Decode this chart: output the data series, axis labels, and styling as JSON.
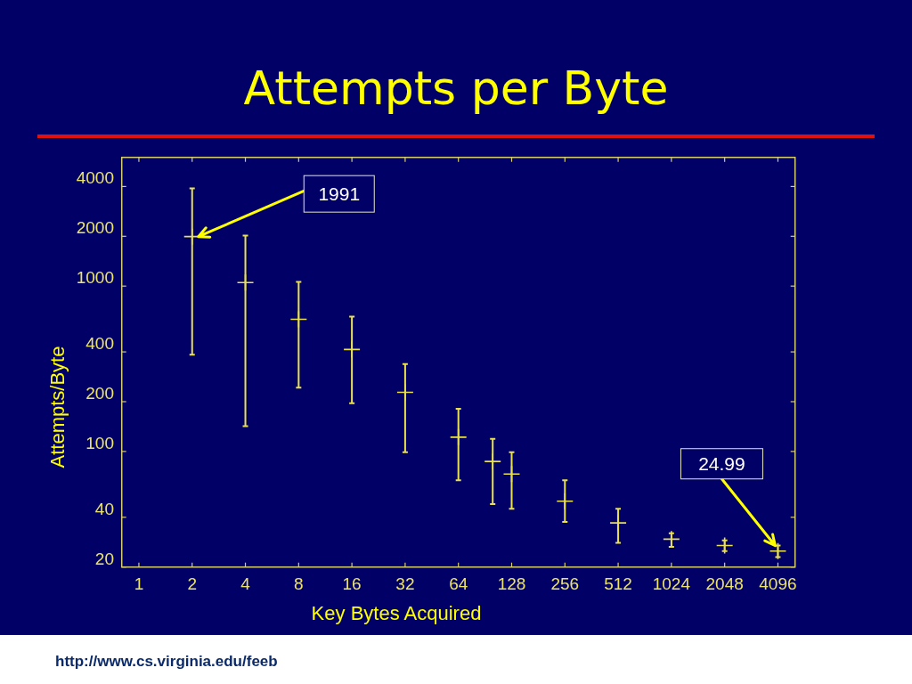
{
  "chart_data": {
    "type": "scatter",
    "title": "Attempts per Byte",
    "xlabel": "Key Bytes Acquired",
    "ylabel": "Attempts/Byte",
    "x": [
      2,
      4,
      8,
      16,
      32,
      64,
      100,
      128,
      256,
      512,
      1024,
      2048,
      4096
    ],
    "values": [
      1991,
      1050,
      630,
      414,
      228,
      122,
      87,
      73,
      50,
      37,
      29.5,
      27,
      24.99
    ],
    "errors": [
      [
        385,
        3900
      ],
      [
        142,
        2020
      ],
      [
        243,
        1060
      ],
      [
        196,
        654
      ],
      [
        99,
        338
      ],
      [
        67,
        181
      ],
      [
        48,
        119
      ],
      [
        45,
        99
      ],
      [
        37.5,
        67
      ],
      [
        28,
        45
      ],
      [
        26.5,
        32
      ],
      [
        25,
        29
      ],
      [
        23,
        27
      ]
    ],
    "color": "#e8e050",
    "marker": "cross",
    "log": "xy",
    "xlim": [
      0.8,
      5120
    ],
    "xticks": [
      1,
      2,
      4,
      8,
      16,
      32,
      64,
      128,
      256,
      512,
      1024,
      2048,
      4096
    ],
    "ylim": [
      20,
      6000
    ],
    "yticks": [
      20,
      40,
      100,
      200,
      400,
      1000,
      2000,
      4000
    ],
    "annotations": [
      {
        "text": "1991",
        "x": 2,
        "y": 1991
      },
      {
        "text": "24.99",
        "x": 4096,
        "y": 24.99
      },
      "http://www.cs.virginia.edu/feeb"
    ]
  }
}
